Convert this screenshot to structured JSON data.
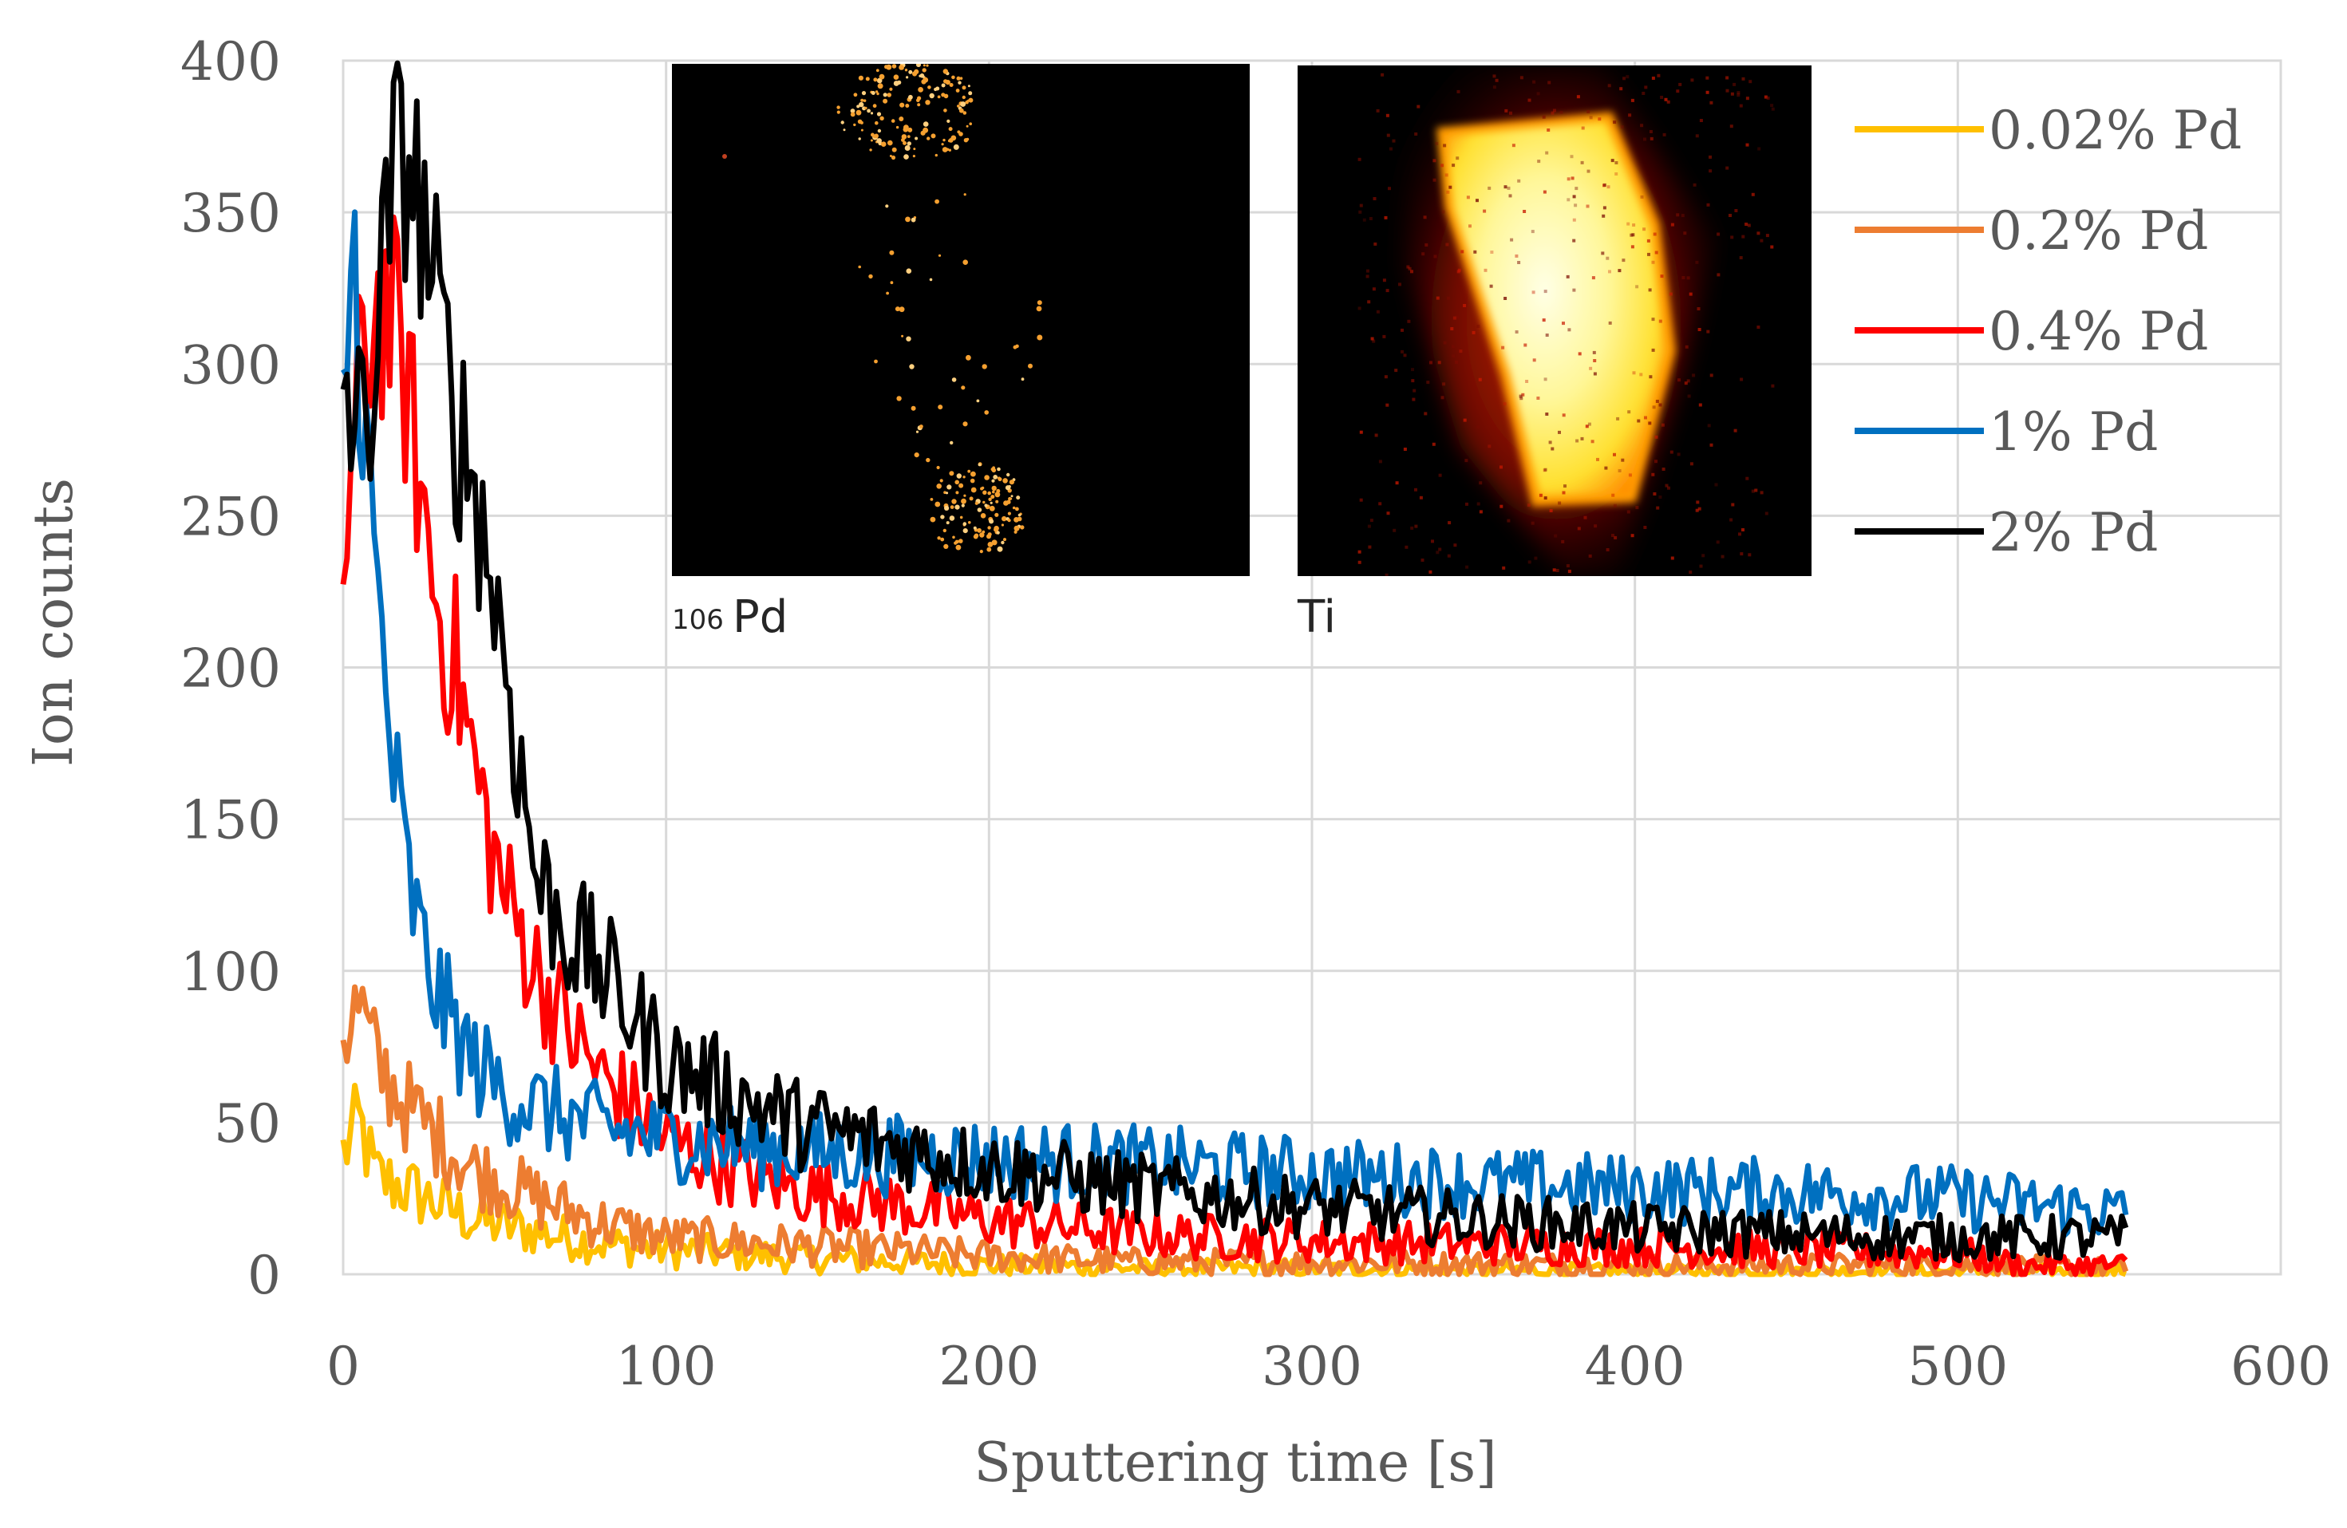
{
  "chart_data": {
    "type": "line",
    "title": "",
    "xlabel": "Sputtering time [s]",
    "ylabel": "Ion counts",
    "xlim": [
      0,
      600
    ],
    "ylim": [
      0,
      400
    ],
    "x_ticks": [
      0,
      100,
      200,
      300,
      400,
      500,
      600
    ],
    "y_ticks": [
      0,
      50,
      100,
      150,
      200,
      250,
      300,
      350,
      400
    ],
    "grid": true,
    "legend_position": "top-right",
    "series": [
      {
        "name": "0.02% Pd",
        "color": "#FFC000",
        "x": [
          0,
          5,
          10,
          20,
          40,
          60,
          80,
          100,
          150,
          200,
          250,
          300,
          400,
          500,
          553
        ],
        "values": [
          40,
          50,
          32,
          28,
          18,
          14,
          10,
          8,
          5,
          3,
          2,
          2,
          1,
          1,
          1
        ]
      },
      {
        "name": "0.2% Pd",
        "color": "#ED7D31",
        "x": [
          0,
          5,
          10,
          20,
          30,
          40,
          60,
          80,
          100,
          150,
          200,
          250,
          300,
          400,
          500,
          553
        ],
        "values": [
          80,
          88,
          70,
          55,
          45,
          35,
          25,
          17,
          12,
          9,
          6,
          4,
          4,
          3,
          3,
          2
        ]
      },
      {
        "name": "0.4% Pd",
        "color": "#FF0000",
        "x": [
          0,
          5,
          10,
          15,
          20,
          25,
          30,
          35,
          40,
          45,
          50,
          60,
          70,
          80,
          90,
          100,
          120,
          140,
          160,
          200,
          250,
          300,
          350,
          400,
          450,
          500,
          520,
          553
        ],
        "values": [
          230,
          290,
          320,
          315,
          290,
          250,
          215,
          200,
          170,
          145,
          125,
          100,
          80,
          65,
          55,
          45,
          35,
          28,
          25,
          18,
          13,
          11,
          10,
          9,
          8,
          7,
          3,
          3
        ]
      },
      {
        "name": "1% Pd",
        "color": "#0070C0",
        "x": [
          0,
          3,
          6,
          10,
          15,
          20,
          25,
          30,
          40,
          50,
          60,
          80,
          100,
          150,
          200,
          250,
          300,
          350,
          400,
          450,
          500,
          553
        ],
        "values": [
          280,
          345,
          290,
          230,
          170,
          130,
          105,
          90,
          70,
          60,
          55,
          48,
          45,
          40,
          38,
          36,
          33,
          30,
          28,
          27,
          25,
          20
        ]
      },
      {
        "name": "2% Pd",
        "color": "#000000",
        "x": [
          0,
          5,
          10,
          15,
          20,
          25,
          30,
          35,
          40,
          45,
          50,
          55,
          60,
          70,
          80,
          90,
          100,
          110,
          120,
          140,
          160,
          180,
          200,
          250,
          300,
          350,
          400,
          450,
          500,
          553
        ],
        "values": [
          295,
          275,
          300,
          360,
          370,
          345,
          310,
          280,
          265,
          235,
          205,
          165,
          130,
          112,
          100,
          85,
          70,
          65,
          60,
          50,
          45,
          40,
          35,
          28,
          22,
          18,
          15,
          13,
          12,
          12
        ]
      }
    ],
    "insets": [
      {
        "name": "pd-map",
        "label_mass": "106",
        "label_element": "Pd"
      },
      {
        "name": "ti-map",
        "label_element": "Ti"
      }
    ]
  }
}
